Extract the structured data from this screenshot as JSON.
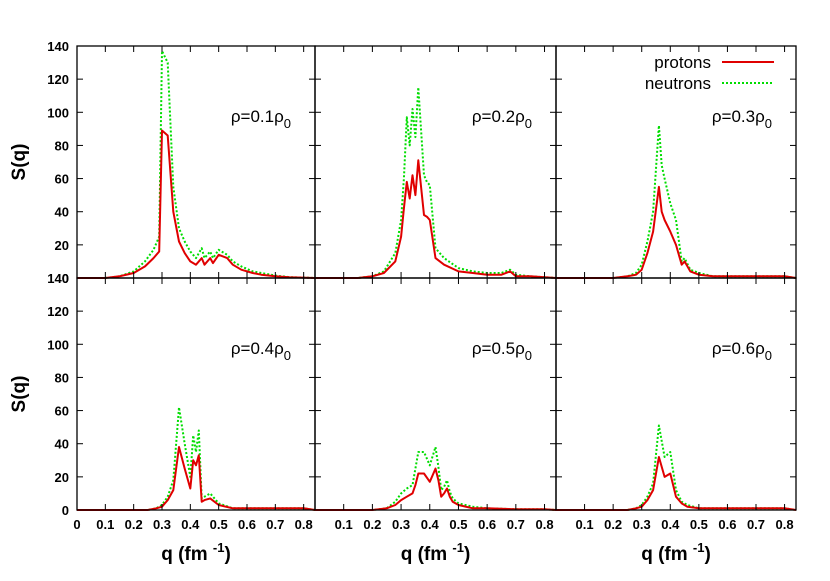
{
  "chart_data": {
    "type": "line",
    "layout": "2x3 grid of panels with shared axes",
    "xlabel": "q (fm",
    "xlabel_sup": "-1",
    "xlabel_close": ")",
    "ylabel": "S(q)",
    "xlim": [
      0,
      0.84
    ],
    "ylim": [
      0,
      140
    ],
    "xticks": [
      "0",
      "0.1",
      "0.2",
      "0.3",
      "0.4",
      "0.5",
      "0.6",
      "0.7",
      "0.8"
    ],
    "xtick_values": [
      0,
      0.1,
      0.2,
      0.3,
      0.4,
      0.5,
      0.6,
      0.7,
      0.8
    ],
    "yticks": [
      "0",
      "20",
      "40",
      "60",
      "80",
      "100",
      "120",
      "140"
    ],
    "ytick_values": [
      0,
      20,
      40,
      60,
      80,
      100,
      120,
      140
    ],
    "grid": false,
    "legend": {
      "placement": "top-right",
      "entries": [
        {
          "label": "protons",
          "color": "#e00000",
          "style": "solid"
        },
        {
          "label": "neutrons",
          "color": "#00dd00",
          "style": "dotted"
        }
      ]
    },
    "panels": [
      {
        "annotation": {
          "base": "ρ=0.1ρ",
          "sub": "0"
        },
        "series": [
          {
            "name": "protons",
            "x": [
              0.0,
              0.1,
              0.15,
              0.2,
              0.24,
              0.27,
              0.29,
              0.3,
              0.32,
              0.34,
              0.36,
              0.38,
              0.4,
              0.42,
              0.44,
              0.45,
              0.47,
              0.48,
              0.5,
              0.53,
              0.55,
              0.58,
              0.62,
              0.65,
              0.7,
              0.75,
              0.84
            ],
            "y": [
              0,
              0,
              1,
              3,
              7,
              12,
              16,
              89,
              86,
              40,
              22,
              15,
              10,
              8,
              12,
              8,
              12,
              9,
              14,
              12,
              8,
              5,
              3,
              2,
              1,
              0.5,
              0
            ]
          },
          {
            "name": "neutrons",
            "x": [
              0.0,
              0.1,
              0.15,
              0.2,
              0.24,
              0.27,
              0.29,
              0.3,
              0.32,
              0.34,
              0.36,
              0.38,
              0.4,
              0.42,
              0.44,
              0.45,
              0.47,
              0.48,
              0.5,
              0.53,
              0.55,
              0.58,
              0.62,
              0.65,
              0.7,
              0.75,
              0.84
            ],
            "y": [
              0,
              0,
              1,
              4,
              10,
              17,
              25,
              137,
              130,
              55,
              30,
              22,
              16,
              12,
              18,
              12,
              16,
              12,
              17,
              14,
              10,
              7,
              4,
              3,
              1.5,
              0.5,
              0
            ]
          }
        ]
      },
      {
        "annotation": {
          "base": "ρ=0.2ρ",
          "sub": "0"
        },
        "series": [
          {
            "name": "protons",
            "x": [
              0.0,
              0.15,
              0.2,
              0.24,
              0.28,
              0.3,
              0.31,
              0.32,
              0.33,
              0.34,
              0.35,
              0.36,
              0.38,
              0.39,
              0.4,
              0.42,
              0.45,
              0.5,
              0.55,
              0.6,
              0.65,
              0.68,
              0.7,
              0.75,
              0.84
            ],
            "y": [
              0,
              0,
              1,
              3,
              10,
              25,
              42,
              58,
              48,
              62,
              50,
              71,
              38,
              37,
              35,
              12,
              8,
              4,
              3,
              2,
              2,
              4,
              1,
              1,
              0
            ]
          },
          {
            "name": "neutrons",
            "x": [
              0.0,
              0.15,
              0.2,
              0.24,
              0.28,
              0.3,
              0.31,
              0.32,
              0.33,
              0.34,
              0.35,
              0.36,
              0.38,
              0.39,
              0.4,
              0.42,
              0.45,
              0.5,
              0.55,
              0.6,
              0.65,
              0.68,
              0.7,
              0.75,
              0.84
            ],
            "y": [
              0,
              0,
              1,
              4,
              15,
              35,
              60,
              97,
              80,
              102,
              85,
              115,
              62,
              58,
              56,
              18,
              12,
              6,
              4,
              3,
              3,
              5,
              2,
              1,
              0
            ]
          }
        ]
      },
      {
        "annotation": {
          "base": "ρ=0.3ρ",
          "sub": "0"
        },
        "series": [
          {
            "name": "protons",
            "x": [
              0.0,
              0.2,
              0.25,
              0.28,
              0.3,
              0.32,
              0.34,
              0.36,
              0.37,
              0.38,
              0.4,
              0.42,
              0.44,
              0.45,
              0.47,
              0.5,
              0.55,
              0.6,
              0.7,
              0.8,
              0.84
            ],
            "y": [
              0,
              0,
              1,
              2,
              5,
              15,
              28,
              55,
              40,
              35,
              28,
              20,
              8,
              10,
              4,
              2,
              1,
              1,
              1,
              1,
              0
            ]
          },
          {
            "name": "neutrons",
            "x": [
              0.0,
              0.2,
              0.25,
              0.28,
              0.3,
              0.32,
              0.34,
              0.36,
              0.37,
              0.38,
              0.4,
              0.42,
              0.44,
              0.45,
              0.47,
              0.5,
              0.55,
              0.6,
              0.7,
              0.8,
              0.84
            ],
            "y": [
              0,
              0,
              1,
              3,
              8,
              22,
              40,
              92,
              68,
              60,
              45,
              35,
              10,
              12,
              5,
              3,
              1,
              1,
              1,
              1,
              0
            ]
          }
        ]
      },
      {
        "annotation": {
          "base": "ρ=0.4ρ",
          "sub": "0"
        },
        "series": [
          {
            "name": "protons",
            "x": [
              0.0,
              0.25,
              0.28,
              0.3,
              0.32,
              0.34,
              0.36,
              0.38,
              0.4,
              0.41,
              0.42,
              0.43,
              0.44,
              0.45,
              0.47,
              0.5,
              0.55,
              0.6,
              0.7,
              0.8,
              0.84
            ],
            "y": [
              0,
              0,
              1,
              2,
              6,
              12,
              38,
              25,
              13,
              30,
              27,
              33,
              5,
              6,
              7,
              3,
              1,
              1,
              1,
              1,
              0
            ]
          },
          {
            "name": "neutrons",
            "x": [
              0.0,
              0.25,
              0.28,
              0.3,
              0.32,
              0.34,
              0.36,
              0.38,
              0.4,
              0.41,
              0.42,
              0.43,
              0.44,
              0.45,
              0.47,
              0.5,
              0.55,
              0.6,
              0.7,
              0.8,
              0.84
            ],
            "y": [
              0,
              0,
              1,
              3,
              8,
              18,
              62,
              40,
              20,
              45,
              35,
              48,
              7,
              8,
              10,
              4,
              1,
              1,
              1,
              1,
              0
            ]
          }
        ]
      },
      {
        "annotation": {
          "base": "ρ=0.5ρ",
          "sub": "0"
        },
        "series": [
          {
            "name": "protons",
            "x": [
              0.0,
              0.2,
              0.25,
              0.28,
              0.3,
              0.32,
              0.34,
              0.35,
              0.36,
              0.38,
              0.4,
              0.42,
              0.43,
              0.44,
              0.45,
              0.46,
              0.47,
              0.48,
              0.5,
              0.55,
              0.6,
              0.7,
              0.8,
              0.84
            ],
            "y": [
              0,
              0,
              1,
              3,
              6,
              8,
              10,
              15,
              22,
              22,
              17,
              25,
              18,
              8,
              10,
              13,
              8,
              5,
              3,
              1,
              1,
              0.5,
              0.5,
              0
            ]
          },
          {
            "name": "neutrons",
            "x": [
              0.0,
              0.2,
              0.25,
              0.28,
              0.3,
              0.32,
              0.34,
              0.35,
              0.36,
              0.38,
              0.4,
              0.42,
              0.43,
              0.44,
              0.45,
              0.46,
              0.47,
              0.48,
              0.5,
              0.55,
              0.6,
              0.7,
              0.8,
              0.84
            ],
            "y": [
              0,
              0,
              1,
              5,
              10,
              13,
              15,
              25,
              35,
              35,
              27,
              38,
              26,
              12,
              14,
              18,
              11,
              7,
              4,
              2,
              1,
              0.5,
              0.5,
              0
            ]
          }
        ]
      },
      {
        "annotation": {
          "base": "ρ=0.6ρ",
          "sub": "0"
        },
        "series": [
          {
            "name": "protons",
            "x": [
              0.0,
              0.25,
              0.28,
              0.3,
              0.32,
              0.34,
              0.36,
              0.38,
              0.4,
              0.42,
              0.44,
              0.46,
              0.5,
              0.55,
              0.6,
              0.7,
              0.8,
              0.84
            ],
            "y": [
              0,
              0,
              1,
              2,
              6,
              12,
              32,
              20,
              22,
              8,
              4,
              2,
              1,
              1,
              1,
              1,
              1,
              0
            ]
          },
          {
            "name": "neutrons",
            "x": [
              0.0,
              0.25,
              0.28,
              0.3,
              0.32,
              0.34,
              0.36,
              0.38,
              0.4,
              0.42,
              0.44,
              0.46,
              0.5,
              0.55,
              0.6,
              0.7,
              0.8,
              0.84
            ],
            "y": [
              0,
              0,
              1,
              3,
              8,
              16,
              51,
              32,
              35,
              12,
              5,
              3,
              1,
              1,
              1,
              1,
              1,
              0
            ]
          }
        ]
      }
    ]
  }
}
